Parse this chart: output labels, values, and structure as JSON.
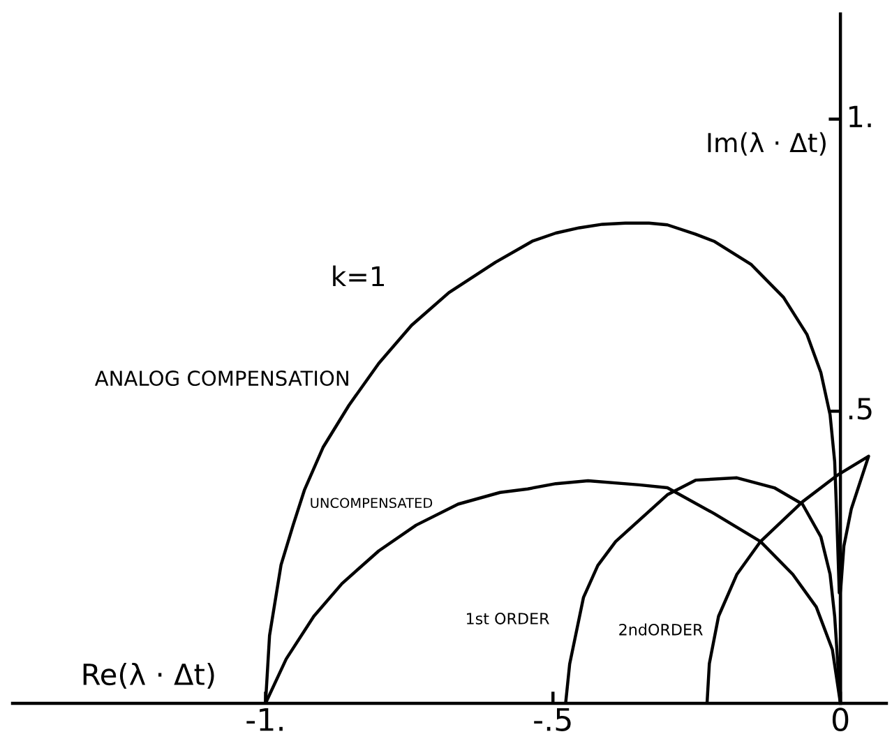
{
  "chart_data": {
    "type": "line",
    "xlabel": "Re(λ · Δt)",
    "ylabel": "Im(λ · Δt)",
    "annotations": [
      "k=1"
    ],
    "xlim": [
      -1.44,
      0.08
    ],
    "ylim": [
      0,
      1.18
    ],
    "xticks": [
      {
        "value": -1,
        "label": "-1."
      },
      {
        "value": -0.5,
        "label": "-.5"
      },
      0
    ],
    "yticks": [
      {
        "value": 0.5,
        "label": ".5"
      },
      {
        "value": 1,
        "label": "1."
      }
    ],
    "line_style": "solid",
    "series": [
      {
        "name": "ANALOG COMPENSATION",
        "color": "#000000",
        "x": [
          -1.0,
          -0.993,
          -0.973,
          -0.952,
          -0.932,
          -0.9,
          -0.855,
          -0.803,
          -0.746,
          -0.681,
          -0.6,
          -0.536,
          -0.495,
          -0.454,
          -0.414,
          -0.374,
          -0.333,
          -0.301,
          -0.252,
          -0.22,
          -0.155,
          -0.099,
          -0.058,
          -0.034,
          -0.018,
          -0.01,
          -0.006,
          -0.002
        ],
        "values": [
          0.0,
          0.116,
          0.237,
          0.305,
          0.366,
          0.438,
          0.51,
          0.582,
          0.647,
          0.703,
          0.755,
          0.791,
          0.805,
          0.814,
          0.82,
          0.822,
          0.822,
          0.819,
          0.803,
          0.791,
          0.751,
          0.695,
          0.631,
          0.566,
          0.494,
          0.414,
          0.309,
          0.189
        ]
      },
      {
        "name": "UNCOMPENSATED",
        "color": "#000000",
        "x": [
          -1.0,
          -0.964,
          -0.916,
          -0.867,
          -0.803,
          -0.738,
          -0.665,
          -0.592,
          -0.544,
          -0.495,
          -0.439,
          -0.35,
          -0.301,
          -0.22,
          -0.139,
          -0.083,
          -0.042,
          -0.014,
          0.0
        ],
        "values": [
          0.0,
          0.076,
          0.149,
          0.205,
          0.261,
          0.305,
          0.341,
          0.361,
          0.367,
          0.376,
          0.381,
          0.374,
          0.369,
          0.325,
          0.277,
          0.221,
          0.165,
          0.092,
          0.0
        ]
      },
      {
        "name": "1st ORDER",
        "color": "#000000",
        "x": [
          -0.478,
          -0.471,
          -0.447,
          -0.422,
          -0.391,
          -0.301,
          -0.252,
          -0.18,
          -0.115,
          -0.066,
          -0.034,
          -0.018,
          -0.01,
          0.0
        ],
        "values": [
          0.0,
          0.067,
          0.181,
          0.236,
          0.277,
          0.357,
          0.382,
          0.386,
          0.369,
          0.341,
          0.285,
          0.221,
          0.149,
          0.0
        ]
      },
      {
        "name": "2ndORDER",
        "color": "#000000",
        "x": [
          -0.232,
          -0.228,
          -0.212,
          -0.18,
          -0.139,
          -0.066,
          -0.006,
          0.049,
          0.035,
          0.019,
          0.006,
          0.0,
          0.0
        ],
        "values": [
          0.0,
          0.068,
          0.149,
          0.221,
          0.277,
          0.345,
          0.39,
          0.423,
          0.381,
          0.333,
          0.269,
          0.189,
          0.0
        ]
      }
    ]
  }
}
